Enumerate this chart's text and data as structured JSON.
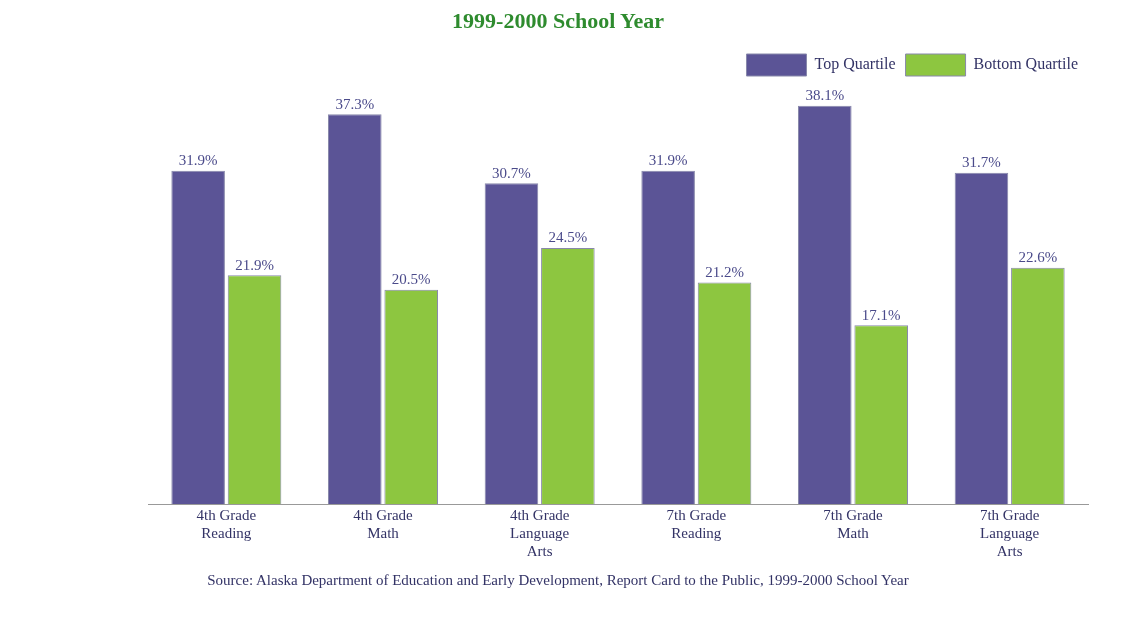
{
  "chart_data": {
    "type": "bar",
    "title": "1999-2000 School Year",
    "categories": [
      "4th Grade Reading",
      "4th Grade Math",
      "4th Grade Language Arts",
      "7th Grade Reading",
      "7th Grade Math",
      "7th Grade Language Arts"
    ],
    "series": [
      {
        "name": "Top Quartile",
        "color": "#5b5496",
        "values": [
          31.9,
          37.3,
          30.7,
          31.9,
          38.1,
          31.7
        ],
        "value_labels": [
          "31.9%",
          "37.3%",
          "30.7%",
          "31.9%",
          "38.1%",
          "31.7%"
        ]
      },
      {
        "name": "Bottom Quartile",
        "color": "#8dc640",
        "values": [
          21.9,
          20.5,
          24.5,
          21.2,
          17.1,
          22.6
        ],
        "value_labels": [
          "21.9%",
          "20.5%",
          "24.5%",
          "21.2%",
          "17.1%",
          "22.6%"
        ]
      }
    ],
    "legend": "top right",
    "grid": false,
    "annotations": [
      "Source: Alaska Department of Education and Early Development, Report Card to the Public, 1999-2000 School Year"
    ]
  }
}
